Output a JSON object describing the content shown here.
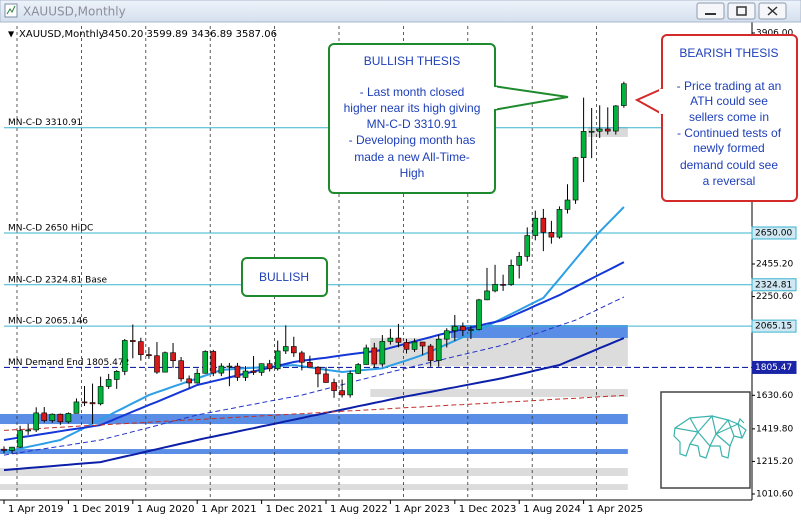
{
  "chart_data": {
    "type": "candlestick",
    "window_title": "XAUUSD,Monthly",
    "title": "XAUUSD,Monthly",
    "ohlc_label": "3450.20 3599.89 3436.89 3587.06",
    "categories": [
      "1 Apr 2019",
      null,
      null,
      null,
      null,
      null,
      null,
      null,
      "1 Dec 2019",
      null,
      null,
      null,
      null,
      null,
      null,
      null,
      "1 Aug 2020",
      null,
      null,
      null,
      null,
      null,
      null,
      null,
      "1 Apr 2021",
      null,
      null,
      null,
      null,
      null,
      null,
      null,
      "1 Dec 2021",
      null,
      null,
      null,
      null,
      null,
      null,
      null,
      "1 Aug 2022",
      null,
      null,
      null,
      null,
      null,
      null,
      null,
      "1 Apr 2023",
      null,
      null,
      null,
      null,
      null,
      null,
      null,
      "1 Dec 2023",
      null,
      null,
      null,
      null,
      null,
      null,
      null,
      "1 Aug 2024",
      null,
      null,
      null,
      null,
      null,
      null,
      null,
      "1 Apr 2025",
      null,
      null,
      null,
      null,
      null
    ],
    "open": [
      1292,
      1284,
      1305,
      1409,
      1413,
      1520,
      1472,
      1512,
      1464,
      1517,
      1589,
      1585,
      1577,
      1686,
      1730,
      1781,
      1975,
      1968,
      1886,
      1879,
      1776,
      1898,
      1848,
      1734,
      1708,
      1769,
      1906,
      1770,
      1814,
      1814,
      1743,
      1783,
      1774,
      1829,
      1797,
      1909,
      1937,
      1897,
      1838,
      1807,
      1765,
      1711,
      1660,
      1633,
      1768,
      1824,
      1928,
      1827,
      1969,
      1990,
      1963,
      1919,
      1965,
      1940,
      1849,
      1983,
      2036,
      2063,
      2039,
      2044,
      2230,
      2286,
      2327,
      2326,
      2447,
      2503,
      2634,
      2743,
      2654,
      2624,
      2798,
      2857,
      3123,
      3288,
      3289,
      3303,
      3290,
      3450.2
    ],
    "high": [
      1310,
      1306,
      1439,
      1452,
      1555,
      1557,
      1517,
      1516,
      1523,
      1611,
      1689,
      1704,
      1748,
      1765,
      1789,
      1984,
      2075,
      1992,
      1933,
      1965,
      1906,
      1959,
      1871,
      1755,
      1798,
      1913,
      1916,
      1832,
      1834,
      1834,
      1814,
      1877,
      1831,
      1853,
      1974,
      2070,
      1998,
      1910,
      1879,
      1814,
      1808,
      1735,
      1730,
      1786,
      1833,
      1949,
      1960,
      2009,
      2048,
      2079,
      1985,
      1987,
      1966,
      1953,
      2009,
      2052,
      2135,
      2088,
      2065,
      2236,
      2431,
      2450,
      2388,
      2483,
      2531,
      2685,
      2790,
      2801,
      2726,
      2817,
      2956,
      3128,
      3500,
      3435,
      3452,
      3439,
      3453,
      3599.89
    ],
    "low": [
      1266,
      1266,
      1300,
      1382,
      1400,
      1459,
      1458,
      1445,
      1454,
      1517,
      1563,
      1451,
      1567,
      1671,
      1671,
      1757,
      1863,
      1848,
      1860,
      1765,
      1775,
      1802,
      1717,
      1677,
      1704,
      1766,
      1751,
      1751,
      1688,
      1721,
      1721,
      1758,
      1753,
      1780,
      1786,
      1890,
      1872,
      1787,
      1805,
      1681,
      1709,
      1615,
      1617,
      1616,
      1765,
      1823,
      1804,
      1810,
      1949,
      1932,
      1893,
      1903,
      1884,
      1810,
      1810,
      1931,
      1973,
      2002,
      1984,
      2038,
      2228,
      2277,
      2286,
      2318,
      2364,
      2471,
      2604,
      2536,
      2583,
      2614,
      2772,
      2833,
      2970,
      3120,
      3247,
      3268,
      3268,
      3436.89
    ],
    "close": [
      1284,
      1305,
      1409,
      1413,
      1520,
      1472,
      1512,
      1464,
      1517,
      1589,
      1585,
      1577,
      1686,
      1730,
      1781,
      1975,
      1968,
      1886,
      1879,
      1776,
      1898,
      1848,
      1734,
      1708,
      1769,
      1906,
      1770,
      1814,
      1814,
      1743,
      1783,
      1774,
      1829,
      1797,
      1909,
      1937,
      1897,
      1838,
      1807,
      1765,
      1711,
      1660,
      1633,
      1768,
      1824,
      1928,
      1827,
      1969,
      1990,
      1963,
      1919,
      1965,
      1940,
      1849,
      1983,
      2036,
      2063,
      2039,
      2044,
      2230,
      2286,
      2327,
      2326,
      2447,
      2503,
      2634,
      2743,
      2654,
      2624,
      2798,
      2857,
      3123,
      3288,
      3289,
      3303,
      3290,
      3448,
      3587.06
    ],
    "up_color": "#00b33c",
    "down_color": "#d41a1a",
    "ylim": [
      973,
      3975
    ],
    "yticks": [
      {
        "value": 3906,
        "label": "3906.00"
      },
      {
        "value": 2455.2,
        "label": "2455.20"
      },
      {
        "value": 2250.6,
        "label": "2250.60"
      },
      {
        "value": 1630.6,
        "label": "1630.60"
      },
      {
        "value": 1419.8,
        "label": "1419.80"
      },
      {
        "value": 1215.2,
        "label": "1215.20"
      },
      {
        "value": 1010.6,
        "label": "1010.60"
      }
    ],
    "grid": "x",
    "lines": [
      {
        "color": "#2d9fe6",
        "dashed": false,
        "values": [
          1274,
          1285,
          1296,
          1307,
          1317,
          1328,
          1339,
          1350,
          1376,
          1401,
          1427,
          1453,
          1478,
          1504,
          1530,
          1555,
          1581,
          1606,
          1632,
          1650,
          1667,
          1685,
          1702,
          1720,
          1737,
          1755,
          1772,
          1790,
          1793,
          1797,
          1800,
          1803,
          1807,
          1810,
          1813,
          1817,
          1820,
          1813,
          1806,
          1798,
          1791,
          1784,
          1777,
          1782,
          1786,
          1791,
          1795,
          1800,
          1817,
          1834,
          1850,
          1867,
          1884,
          1906,
          1929,
          1951,
          1973,
          1996,
          2018,
          2040,
          2065,
          2091,
          2116,
          2141,
          2166,
          2192,
          2217,
          2242,
          2303,
          2363,
          2424,
          2485,
          2545,
          2606,
          2658,
          2710,
          2761,
          2813
        ]
      },
      {
        "color": "#1537d8",
        "dashed": false,
        "values": [
          1350,
          1358,
          1366,
          1373,
          1381,
          1389,
          1397,
          1405,
          1413,
          1420,
          1428,
          1436,
          1444,
          1465,
          1486,
          1507,
          1528,
          1549,
          1570,
          1590,
          1611,
          1632,
          1653,
          1674,
          1695,
          1707,
          1719,
          1731,
          1743,
          1755,
          1768,
          1780,
          1792,
          1804,
          1816,
          1828,
          1840,
          1847,
          1854,
          1861,
          1867,
          1874,
          1881,
          1888,
          1895,
          1901,
          1908,
          1915,
          1929,
          1942,
          1956,
          1969,
          1983,
          1996,
          2010,
          2022,
          2033,
          2045,
          2056,
          2068,
          2080,
          2091,
          2103,
          2125,
          2148,
          2170,
          2193,
          2215,
          2238,
          2260,
          2286,
          2312,
          2338,
          2364,
          2390,
          2415,
          2441,
          2467
        ]
      },
      {
        "color": "#0c1fa8",
        "dashed": false,
        "values": [
          1161,
          1165,
          1169,
          1174,
          1178,
          1182,
          1186,
          1190,
          1194,
          1199,
          1203,
          1207,
          1211,
          1223,
          1234,
          1246,
          1257,
          1269,
          1281,
          1292,
          1304,
          1315,
          1327,
          1338,
          1350,
          1361,
          1371,
          1382,
          1392,
          1403,
          1414,
          1424,
          1435,
          1445,
          1456,
          1467,
          1477,
          1488,
          1499,
          1509,
          1520,
          1530,
          1541,
          1551,
          1562,
          1572,
          1583,
          1593,
          1604,
          1614,
          1624,
          1633,
          1643,
          1652,
          1662,
          1672,
          1681,
          1691,
          1700,
          1710,
          1720,
          1729,
          1739,
          1751,
          1762,
          1774,
          1786,
          1798,
          1809,
          1821,
          1842,
          1863,
          1884,
          1905,
          1927,
          1948,
          1969,
          1990
        ]
      },
      {
        "color": "#2433c8",
        "dashed": true,
        "values": [
          1255,
          1263,
          1271,
          1279,
          1287,
          1295,
          1303,
          1310,
          1318,
          1326,
          1334,
          1342,
          1350,
          1363,
          1376,
          1389,
          1402,
          1415,
          1428,
          1441,
          1455,
          1468,
          1481,
          1494,
          1507,
          1517,
          1526,
          1536,
          1545,
          1555,
          1565,
          1574,
          1584,
          1594,
          1603,
          1613,
          1622,
          1632,
          1645,
          1658,
          1671,
          1684,
          1697,
          1710,
          1724,
          1737,
          1750,
          1763,
          1776,
          1789,
          1801,
          1813,
          1825,
          1837,
          1849,
          1862,
          1874,
          1886,
          1898,
          1910,
          1922,
          1934,
          1946,
          1963,
          1981,
          1998,
          2016,
          2033,
          2051,
          2068,
          2086,
          2103,
          2127,
          2151,
          2175,
          2200,
          2224,
          2248
        ]
      },
      {
        "color": "#c0302a",
        "dashed": true,
        "values": [
          1410,
          1413,
          1416,
          1419,
          1421,
          1424,
          1427,
          1430,
          1433,
          1436,
          1439,
          1441,
          1444,
          1447,
          1450,
          1453,
          1456,
          1458,
          1461,
          1464,
          1467,
          1470,
          1473,
          1476,
          1478,
          1481,
          1484,
          1487,
          1490,
          1493,
          1496,
          1498,
          1501,
          1504,
          1507,
          1510,
          1513,
          1515,
          1518,
          1521,
          1524,
          1527,
          1530,
          1533,
          1535,
          1538,
          1541,
          1544,
          1547,
          1550,
          1553,
          1555,
          1558,
          1561,
          1564,
          1567,
          1570,
          1572,
          1575,
          1578,
          1581,
          1584,
          1587,
          1590,
          1592,
          1595,
          1598,
          1601,
          1604,
          1607,
          1610,
          1612,
          1615,
          1618,
          1621,
          1624,
          1627,
          1630
        ]
      }
    ],
    "zones": [
      {
        "from": 3316,
        "to": 3253,
        "start": 73,
        "color": "#d9d9d9"
      },
      {
        "from": 2072,
        "to": 1990,
        "start": 56,
        "color": "#5a8ee6"
      },
      {
        "from": 1990,
        "to": 1814,
        "start": 46,
        "color": "#dcdcdc"
      },
      {
        "from": 1670,
        "to": 1620,
        "start": 46,
        "color": "#dcdcdc"
      },
      {
        "from": 1513,
        "to": 1450,
        "start": 0,
        "color": "#5a8ee6"
      },
      {
        "from": 1293,
        "to": 1262,
        "start": 0,
        "color": "#5a8ee6"
      },
      {
        "from": 1174,
        "to": 1124,
        "start": 0,
        "color": "#dcdcdc"
      },
      {
        "from": 1073,
        "to": 1036,
        "start": 0,
        "color": "#dcdcdc"
      }
    ],
    "levels": [
      {
        "label": "MN-C-D 3310.91",
        "value": 3310.91,
        "color": "#3ab3cf",
        "dashed": false
      },
      {
        "label": "MN-C-D 2650 HiDC",
        "value": 2650,
        "axis_label": "2650.00",
        "color": "#3ab3cf",
        "dashed": false
      },
      {
        "label": "MN-C-D 2324.81 Base",
        "value": 2324.81,
        "axis_label": "2324.81",
        "color": "#3ab3cf",
        "dashed": false
      },
      {
        "label": "MN-C-D 2065.146",
        "value": 2065.146,
        "axis_label": "2065.15",
        "color": "#3ab3cf",
        "dashed": false
      },
      {
        "label": "MN Demand End 1805.472",
        "value": 1805.472,
        "axis_label": "1805.47",
        "color": "#1a24a6",
        "dashed": true
      }
    ],
    "bullish_thesis": {
      "title": "BULLISH THESIS",
      "lines": [
        "- Last month closed",
        "higher near its high giving",
        "MN-C-D 3310.91",
        "- Developing month has",
        "made a new All-Time-",
        "High"
      ]
    },
    "bearish_thesis": {
      "title": "BEARISH THESIS",
      "lines": [
        "- Price trading at an",
        "ATH could see",
        "sellers come in",
        "- Continued tests of",
        "newly formed",
        "demand could see",
        "a reversal"
      ]
    },
    "bullish_label": "BULLISH"
  }
}
